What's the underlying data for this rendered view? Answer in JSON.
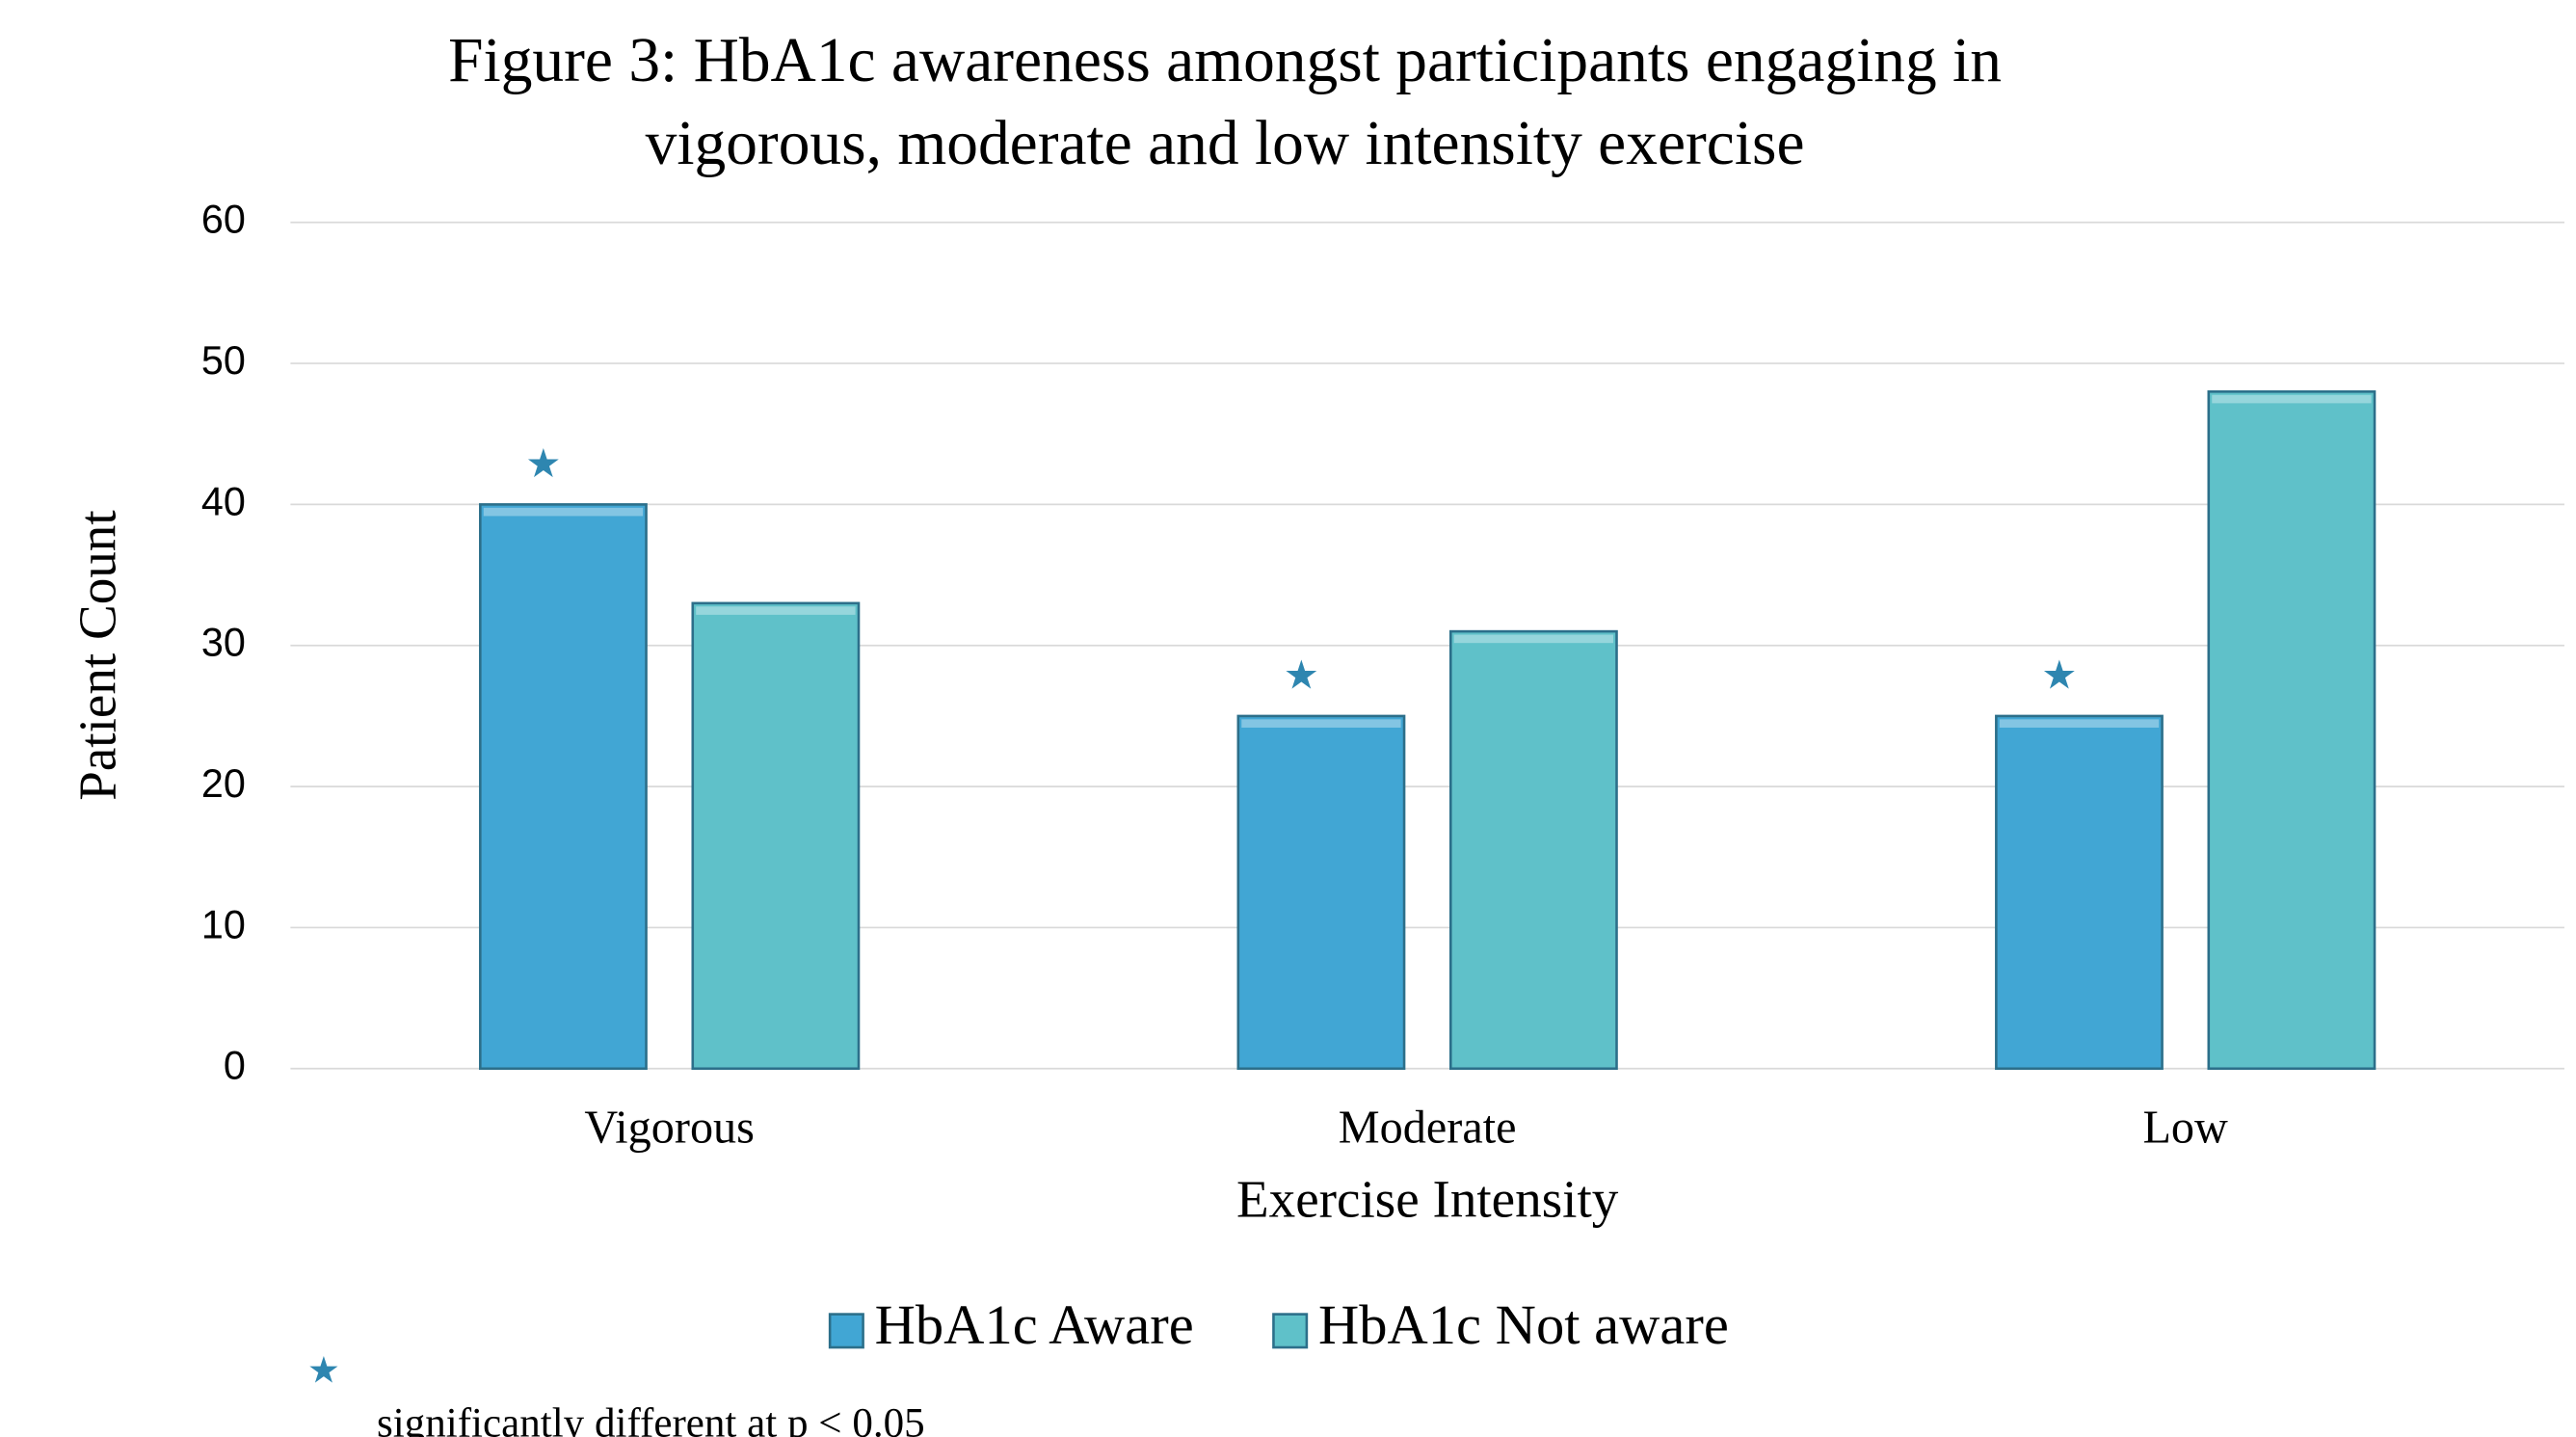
{
  "chart_data": {
    "type": "bar",
    "title": [
      "Figure 3:  HbA1c awareness amongst participants engaging in",
      "vigorous, moderate and low intensity exercise"
    ],
    "x_label": "Exercise Intensity",
    "y_label": "Patient Count",
    "categories": [
      "Vigorous",
      "Moderate",
      "Low"
    ],
    "series": [
      {
        "name": "HbA1c Aware",
        "color": "#41a6d4",
        "values": [
          40,
          25,
          25
        ]
      },
      {
        "name": "HbA1c Not aware",
        "color": "#5fc1c9",
        "values": [
          33,
          31,
          48
        ]
      }
    ],
    "ylim": [
      0,
      60
    ],
    "yticks": [
      0,
      10,
      20,
      30,
      40,
      50,
      60
    ],
    "grid": true,
    "legend": "bottom",
    "markers": [
      {
        "category": "Vigorous",
        "series": "HbA1c Aware",
        "symbol": "★"
      },
      {
        "category": "Moderate",
        "series": "HbA1c Aware",
        "symbol": "★"
      },
      {
        "category": "Low",
        "series": "HbA1c Aware",
        "symbol": "★"
      }
    ],
    "footnote": {
      "symbol": "★",
      "text": "significantly  different at p < 0.05"
    }
  }
}
